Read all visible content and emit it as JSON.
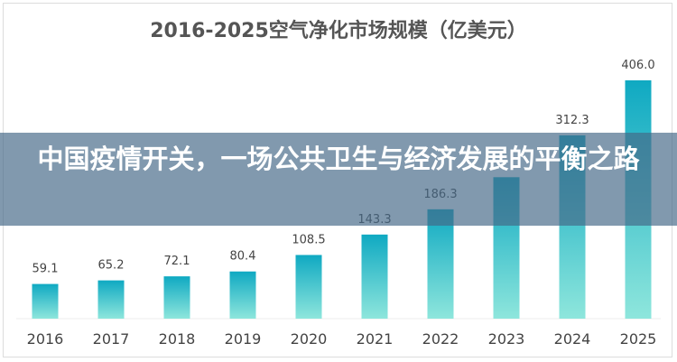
{
  "chart_data": {
    "type": "bar",
    "title": "2016-2025空气净化市场规模（亿美元）",
    "categories": [
      "2016",
      "2017",
      "2018",
      "2019",
      "2020",
      "2021",
      "2022",
      "2023",
      "2024",
      "2025"
    ],
    "values": [
      59.1,
      65.2,
      72.1,
      80.4,
      108.5,
      143.3,
      186.3,
      241.0,
      312.3,
      406.0
    ],
    "labels": [
      "59.1",
      "65.2",
      "72.1",
      "80.4",
      "108.5",
      "143.3",
      "186.3",
      "",
      "312.3",
      "406.0"
    ],
    "ylim": [
      0,
      406
    ],
    "grid": false,
    "colors": {
      "bar_top": "#0fa9c2",
      "bar_bottom": "#8ee6dc",
      "text": "#444444"
    }
  },
  "overlay": {
    "headline": "中国疫情开关，一场公共卫生与经济发展的平衡之路"
  }
}
